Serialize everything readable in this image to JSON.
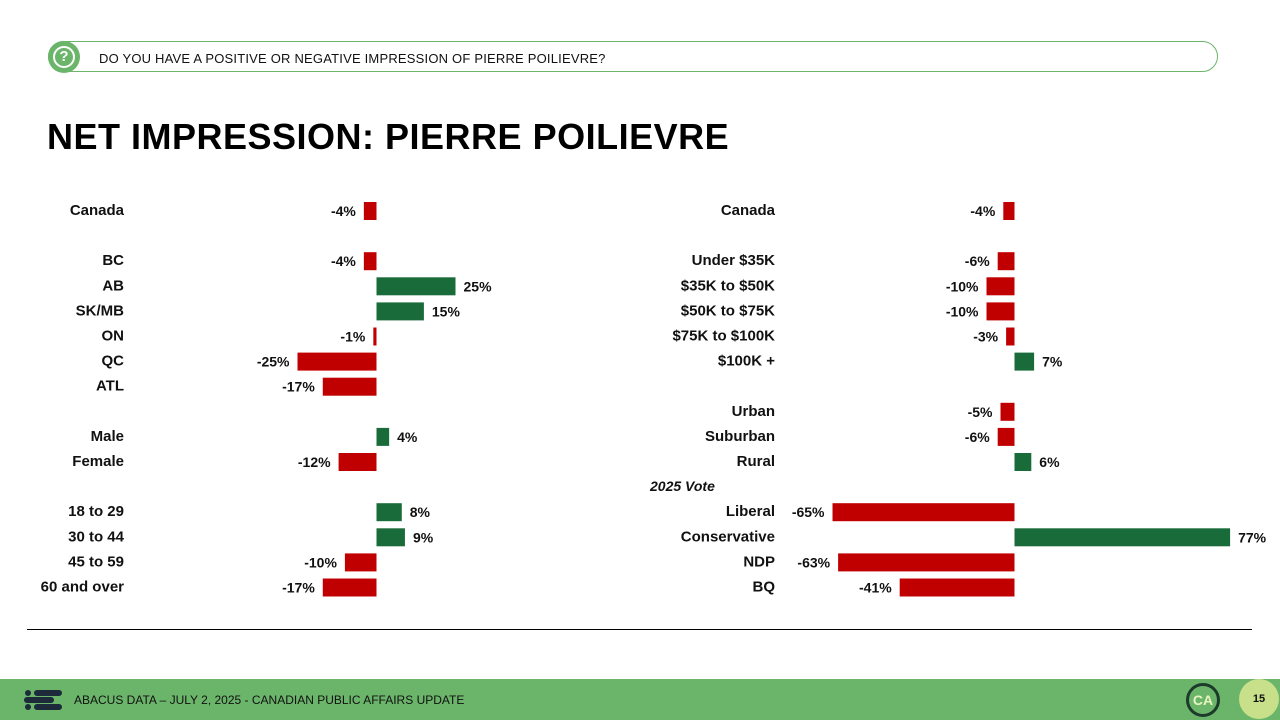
{
  "question": {
    "text": "DO YOU HAVE A POSITIVE OR NEGATIVE IMPRESSION OF PIERRE POILIEVRE?",
    "icon": "question-circle-icon"
  },
  "page_title": "NET IMPRESSION: PIERRE POILIEVRE",
  "colors": {
    "positive": "#1a6b3a",
    "negative": "#c00000",
    "accent": "#6bb56b"
  },
  "chart_data": [
    {
      "type": "bar",
      "orientation": "horizontal",
      "categories": [
        "Canada",
        "BC",
        "AB",
        "SK/MB",
        "ON",
        "QC",
        "ATL",
        "Male",
        "Female",
        "18 to 29",
        "30 to 44",
        "45 to 59",
        "60 and over"
      ],
      "values": [
        -4,
        -4,
        25,
        15,
        -1,
        -25,
        -17,
        4,
        -12,
        8,
        9,
        -10,
        -17
      ],
      "value_labels": [
        "-4%",
        "-4%",
        "25%",
        "15%",
        "-1%",
        "-25%",
        "-17%",
        "4%",
        "-12%",
        "8%",
        "9%",
        "-10%",
        "-17%"
      ],
      "rows": [
        0,
        2,
        3,
        4,
        5,
        6,
        7,
        9,
        10,
        12,
        13,
        14,
        15
      ]
    },
    {
      "type": "bar",
      "orientation": "horizontal",
      "categories": [
        "Canada",
        "Under $35K",
        "$35K to $50K",
        "$50K to $75K",
        "$75K to $100K",
        "$100K +",
        "Urban",
        "Suburban",
        "Rural",
        "Liberal",
        "Conservative",
        "NDP",
        "BQ"
      ],
      "values": [
        -4,
        -6,
        -10,
        -10,
        -3,
        7,
        -5,
        -6,
        6,
        -65,
        77,
        -63,
        -41
      ],
      "value_labels": [
        "-4%",
        "-6%",
        "-10%",
        "-10%",
        "-3%",
        "7%",
        "-5%",
        "-6%",
        "6%",
        "-65%",
        "77%",
        "-63%",
        "-41%"
      ],
      "rows": [
        0,
        2,
        3,
        4,
        5,
        6,
        8,
        9,
        10,
        12,
        13,
        14,
        15
      ],
      "group_labels": [
        {
          "text": "2025 Vote",
          "row": 11
        }
      ]
    }
  ],
  "footer": {
    "text": "ABACUS DATA – JULY 2, 2025 - CANADIAN PUBLIC AFFAIRS UPDATE",
    "badge": "CA",
    "page_number": "15"
  }
}
